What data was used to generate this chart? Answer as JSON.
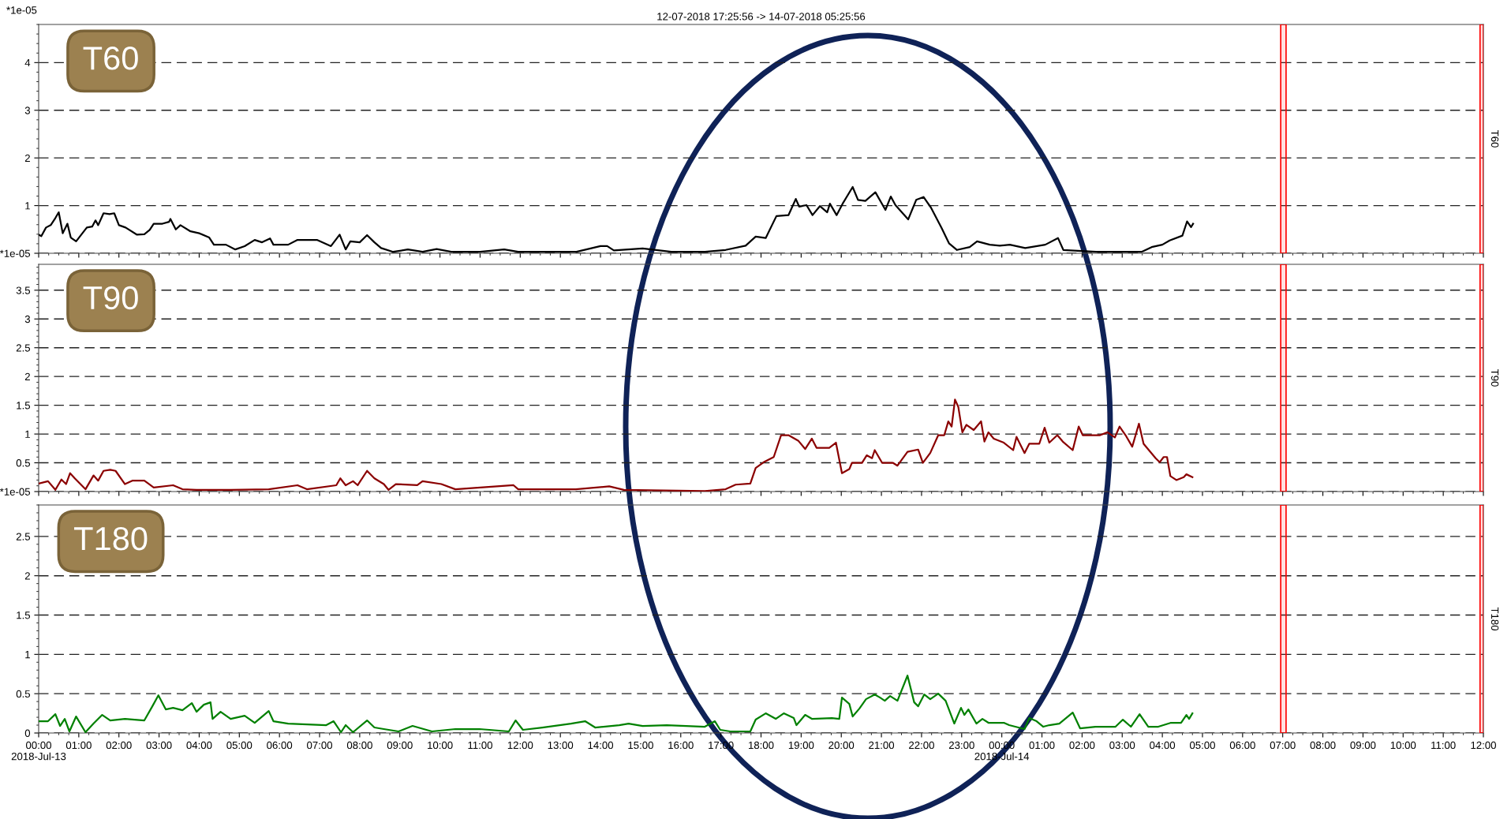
{
  "chart_data": [
    {
      "type": "line",
      "title": "12-07-2018 17:25:56 -> 14-07-2018 05:25:56",
      "ylabel": "*1e-05",
      "y2label": "T60",
      "annotations": [
        "T60"
      ],
      "grid": "y",
      "tick_labels": "y",
      "xlim": [
        "2018-07-13T00:00",
        "2018-07-14T12:00"
      ],
      "xticks": [
        {
          "value": "2018-07-13T00:00",
          "label": null
        },
        {
          "value": "2018-07-13T01:00",
          "label": null
        },
        {
          "value": "2018-07-13T02:00",
          "label": null
        },
        {
          "value": "2018-07-13T03:00",
          "label": null
        },
        {
          "value": "2018-07-13T04:00",
          "label": null
        },
        {
          "value": "2018-07-13T05:00",
          "label": null
        },
        {
          "value": "2018-07-13T06:00",
          "label": null
        },
        {
          "value": "2018-07-13T07:00",
          "label": null
        },
        {
          "value": "2018-07-13T08:00",
          "label": null
        },
        {
          "value": "2018-07-13T09:00",
          "label": null
        },
        {
          "value": "2018-07-13T10:00",
          "label": null
        },
        {
          "value": "2018-07-13T11:00",
          "label": null
        },
        {
          "value": "2018-07-13T12:00",
          "label": null
        },
        {
          "value": "2018-07-13T13:00",
          "label": null
        },
        {
          "value": "2018-07-13T14:00",
          "label": null
        },
        {
          "value": "2018-07-13T15:00",
          "label": null
        },
        {
          "value": "2018-07-13T16:00",
          "label": null
        },
        {
          "value": "2018-07-13T17:00",
          "label": null
        },
        {
          "value": "2018-07-13T18:00",
          "label": null
        },
        {
          "value": "2018-07-13T19:00",
          "label": null
        },
        {
          "value": "2018-07-13T20:00",
          "label": null
        },
        {
          "value": "2018-07-13T21:00",
          "label": null
        },
        {
          "value": "2018-07-13T22:00",
          "label": null
        },
        {
          "value": "2018-07-13T23:00",
          "label": null
        },
        {
          "value": "2018-07-14T00:00",
          "label": null
        },
        {
          "value": "2018-07-14T01:00",
          "label": null
        },
        {
          "value": "2018-07-14T02:00",
          "label": null
        },
        {
          "value": "2018-07-14T03:00",
          "label": null
        },
        {
          "value": "2018-07-14T04:00",
          "label": null
        },
        {
          "value": "2018-07-14T05:00",
          "label": null
        },
        {
          "value": "2018-07-14T06:00",
          "label": null
        },
        {
          "value": "2018-07-14T07:00",
          "label": null
        },
        {
          "value": "2018-07-14T08:00",
          "label": null
        },
        {
          "value": "2018-07-14T09:00",
          "label": null
        },
        {
          "value": "2018-07-14T10:00",
          "label": null
        },
        {
          "value": "2018-07-14T11:00",
          "label": null
        },
        {
          "value": "2018-07-14T12:00",
          "label": null
        }
      ],
      "ylim": [
        0,
        4.8
      ],
      "yticks": [
        {
          "value": 0,
          "label": "*1e-05"
        },
        1,
        2,
        3,
        4
      ],
      "bands": [
        {
          "axis": "x",
          "from": "2018-07-14T06:57",
          "to": "2018-07-14T07:05",
          "color": "#ff0000"
        },
        {
          "axis": "x",
          "from": "2018-07-14T11:55",
          "to": "2018-07-14T12:00",
          "color": "#ff0000"
        }
      ],
      "series": [
        {
          "color": "#000000",
          "x": [
            "2018-07-13T00:00",
            "2018-07-13T00:04",
            "2018-07-13T00:11",
            "2018-07-13T00:18",
            "2018-07-13T00:25",
            "2018-07-13T00:30",
            "2018-07-13T00:36",
            "2018-07-13T00:43",
            "2018-07-13T00:48",
            "2018-07-13T00:56",
            "2018-07-13T01:12",
            "2018-07-13T01:20",
            "2018-07-13T01:25",
            "2018-07-13T01:29",
            "2018-07-13T01:37",
            "2018-07-13T01:46",
            "2018-07-13T01:53",
            "2018-07-13T02:00",
            "2018-07-13T02:10",
            "2018-07-13T02:27",
            "2018-07-13T02:38",
            "2018-07-13T02:46",
            "2018-07-13T02:52",
            "2018-07-13T02:59",
            "2018-07-13T03:05",
            "2018-07-13T03:15",
            "2018-07-13T03:17",
            "2018-07-13T03:25",
            "2018-07-13T03:32",
            "2018-07-13T03:47",
            "2018-07-13T04:00",
            "2018-07-13T04:15",
            "2018-07-13T04:22",
            "2018-07-13T04:40",
            "2018-07-13T04:54",
            "2018-07-13T05:08",
            "2018-07-13T05:23",
            "2018-07-13T05:34",
            "2018-07-13T05:46",
            "2018-07-13T05:51",
            "2018-07-13T06:13",
            "2018-07-13T06:27",
            "2018-07-13T06:56",
            "2018-07-13T07:17",
            "2018-07-13T07:30",
            "2018-07-13T07:39",
            "2018-07-13T07:46",
            "2018-07-13T08:00",
            "2018-07-13T08:11",
            "2018-07-13T08:22",
            "2018-07-13T08:32",
            "2018-07-13T08:50",
            "2018-07-13T09:12",
            "2018-07-13T09:34",
            "2018-07-13T09:55",
            "2018-07-13T10:17",
            "2018-07-13T11:00",
            "2018-07-13T11:36",
            "2018-07-13T11:57",
            "2018-07-13T12:48",
            "2018-07-13T13:24",
            "2018-07-13T14:00",
            "2018-07-13T14:10",
            "2018-07-13T14:20",
            "2018-07-13T15:03",
            "2018-07-13T15:46",
            "2018-07-13T16:36",
            "2018-07-13T17:07",
            "2018-07-13T17:37",
            "2018-07-13T17:52",
            "2018-07-13T18:07",
            "2018-07-13T18:23",
            "2018-07-13T18:41",
            "2018-07-13T18:52",
            "2018-07-13T18:57",
            "2018-07-13T19:08",
            "2018-07-13T19:17",
            "2018-07-13T19:28",
            "2018-07-13T19:39",
            "2018-07-13T19:43",
            "2018-07-13T19:53",
            "2018-07-13T20:02",
            "2018-07-13T20:17",
            "2018-07-13T20:25",
            "2018-07-13T20:36",
            "2018-07-13T20:51",
            "2018-07-13T21:06",
            "2018-07-13T21:14",
            "2018-07-13T21:21",
            "2018-07-13T21:40",
            "2018-07-13T21:52",
            "2018-07-13T22:03",
            "2018-07-13T22:14",
            "2018-07-13T22:30",
            "2018-07-13T22:41",
            "2018-07-13T22:53",
            "2018-07-13T23:12",
            "2018-07-13T23:23",
            "2018-07-13T23:42",
            "2018-07-13T23:57",
            "2018-07-14T00:12",
            "2018-07-14T00:35",
            "2018-07-14T01:05",
            "2018-07-14T01:24",
            "2018-07-14T01:32",
            "2018-07-14T02:21",
            "2018-07-14T03:29",
            "2018-07-14T03:44",
            "2018-07-14T04:00",
            "2018-07-14T04:11",
            "2018-07-14T04:30",
            "2018-07-14T04:37",
            "2018-07-14T04:43",
            "2018-07-14T04:46"
          ],
          "values": [
            0.39,
            0.36,
            0.54,
            0.59,
            0.74,
            0.86,
            0.42,
            0.62,
            0.33,
            0.25,
            0.54,
            0.56,
            0.69,
            0.59,
            0.84,
            0.82,
            0.84,
            0.59,
            0.54,
            0.39,
            0.4,
            0.49,
            0.62,
            0.62,
            0.62,
            0.66,
            0.72,
            0.5,
            0.59,
            0.46,
            0.42,
            0.33,
            0.18,
            0.18,
            0.08,
            0.15,
            0.28,
            0.23,
            0.31,
            0.18,
            0.18,
            0.28,
            0.28,
            0.15,
            0.39,
            0.08,
            0.25,
            0.23,
            0.38,
            0.23,
            0.11,
            0.03,
            0.08,
            0.03,
            0.09,
            0.03,
            0.03,
            0.08,
            0.03,
            0.03,
            0.03,
            0.15,
            0.15,
            0.06,
            0.1,
            0.03,
            0.03,
            0.07,
            0.16,
            0.35,
            0.32,
            0.78,
            0.8,
            1.14,
            0.98,
            1.01,
            0.8,
            0.99,
            0.86,
            1.04,
            0.8,
            1.04,
            1.39,
            1.12,
            1.1,
            1.28,
            0.91,
            1.19,
            1.01,
            0.71,
            1.12,
            1.18,
            0.96,
            0.53,
            0.21,
            0.07,
            0.13,
            0.25,
            0.18,
            0.16,
            0.18,
            0.11,
            0.18,
            0.32,
            0.07,
            0.03,
            0.03,
            0.13,
            0.18,
            0.27,
            0.37,
            0.67,
            0.55,
            0.62
          ]
        }
      ]
    },
    {
      "type": "line",
      "y2label": "T90",
      "annotations": [
        "T90"
      ],
      "grid": "y",
      "tick_labels": "y",
      "xlim": [
        "2018-07-13T00:00",
        "2018-07-14T12:00"
      ],
      "xticks": [
        {
          "value": "2018-07-13T00:00",
          "label": null
        },
        {
          "value": "2018-07-13T01:00",
          "label": null
        },
        {
          "value": "2018-07-13T02:00",
          "label": null
        },
        {
          "value": "2018-07-13T03:00",
          "label": null
        },
        {
          "value": "2018-07-13T04:00",
          "label": null
        },
        {
          "value": "2018-07-13T05:00",
          "label": null
        },
        {
          "value": "2018-07-13T06:00",
          "label": null
        },
        {
          "value": "2018-07-13T07:00",
          "label": null
        },
        {
          "value": "2018-07-13T08:00",
          "label": null
        },
        {
          "value": "2018-07-13T09:00",
          "label": null
        },
        {
          "value": "2018-07-13T10:00",
          "label": null
        },
        {
          "value": "2018-07-13T11:00",
          "label": null
        },
        {
          "value": "2018-07-13T12:00",
          "label": null
        },
        {
          "value": "2018-07-13T13:00",
          "label": null
        },
        {
          "value": "2018-07-13T14:00",
          "label": null
        },
        {
          "value": "2018-07-13T15:00",
          "label": null
        },
        {
          "value": "2018-07-13T16:00",
          "label": null
        },
        {
          "value": "2018-07-13T17:00",
          "label": null
        },
        {
          "value": "2018-07-13T18:00",
          "label": null
        },
        {
          "value": "2018-07-13T19:00",
          "label": null
        },
        {
          "value": "2018-07-13T20:00",
          "label": null
        },
        {
          "value": "2018-07-13T21:00",
          "label": null
        },
        {
          "value": "2018-07-13T22:00",
          "label": null
        },
        {
          "value": "2018-07-13T23:00",
          "label": null
        },
        {
          "value": "2018-07-14T00:00",
          "label": null
        },
        {
          "value": "2018-07-14T01:00",
          "label": null
        },
        {
          "value": "2018-07-14T02:00",
          "label": null
        },
        {
          "value": "2018-07-14T03:00",
          "label": null
        },
        {
          "value": "2018-07-14T04:00",
          "label": null
        },
        {
          "value": "2018-07-14T05:00",
          "label": null
        },
        {
          "value": "2018-07-14T06:00",
          "label": null
        },
        {
          "value": "2018-07-14T07:00",
          "label": null
        },
        {
          "value": "2018-07-14T08:00",
          "label": null
        },
        {
          "value": "2018-07-14T09:00",
          "label": null
        },
        {
          "value": "2018-07-14T10:00",
          "label": null
        },
        {
          "value": "2018-07-14T11:00",
          "label": null
        },
        {
          "value": "2018-07-14T12:00",
          "label": null
        }
      ],
      "ylim": [
        0,
        3.95
      ],
      "yticks": [
        {
          "value": 0,
          "label": "*1e-05"
        },
        0.5,
        1,
        1.5,
        2,
        2.5,
        3,
        3.5
      ],
      "bands": [
        {
          "axis": "x",
          "from": "2018-07-14T06:57",
          "to": "2018-07-14T07:05",
          "color": "#ff0000"
        },
        {
          "axis": "x",
          "from": "2018-07-14T11:55",
          "to": "2018-07-14T12:00",
          "color": "#ff0000"
        }
      ],
      "series": [
        {
          "color": "#8b0000",
          "x": [
            "2018-07-13T00:00",
            "2018-07-13T00:14",
            "2018-07-13T00:25",
            "2018-07-13T00:34",
            "2018-07-13T00:41",
            "2018-07-13T00:47",
            "2018-07-13T00:54",
            "2018-07-13T01:10",
            "2018-07-13T01:22",
            "2018-07-13T01:29",
            "2018-07-13T01:37",
            "2018-07-13T01:47",
            "2018-07-13T01:55",
            "2018-07-13T02:09",
            "2018-07-13T02:20",
            "2018-07-13T02:38",
            "2018-07-13T02:52",
            "2018-07-13T03:21",
            "2018-07-13T03:35",
            "2018-07-13T03:56",
            "2018-07-13T04:47",
            "2018-07-13T05:44",
            "2018-07-13T06:27",
            "2018-07-13T06:41",
            "2018-07-13T07:25",
            "2018-07-13T07:31",
            "2018-07-13T07:39",
            "2018-07-13T07:50",
            "2018-07-13T07:57",
            "2018-07-13T08:11",
            "2018-07-13T08:22",
            "2018-07-13T08:36",
            "2018-07-13T08:43",
            "2018-07-13T08:54",
            "2018-07-13T09:26",
            "2018-07-13T09:34",
            "2018-07-13T10:02",
            "2018-07-13T10:23",
            "2018-07-13T11:50",
            "2018-07-13T11:57",
            "2018-07-13T13:23",
            "2018-07-13T14:13",
            "2018-07-13T14:35",
            "2018-07-13T16:36",
            "2018-07-13T17:07",
            "2018-07-13T17:22",
            "2018-07-13T17:44",
            "2018-07-13T17:52",
            "2018-07-13T18:04",
            "2018-07-13T18:19",
            "2018-07-13T18:30",
            "2018-07-13T18:41",
            "2018-07-13T18:56",
            "2018-07-13T19:06",
            "2018-07-13T19:16",
            "2018-07-13T19:23",
            "2018-07-13T19:42",
            "2018-07-13T19:52",
            "2018-07-13T20:01",
            "2018-07-13T20:12",
            "2018-07-13T20:16",
            "2018-07-13T20:31",
            "2018-07-13T20:38",
            "2018-07-13T20:46",
            "2018-07-13T20:50",
            "2018-07-13T21:01",
            "2018-07-13T21:17",
            "2018-07-13T21:24",
            "2018-07-13T21:39",
            "2018-07-13T21:55",
            "2018-07-13T22:02",
            "2018-07-13T22:13",
            "2018-07-13T22:25",
            "2018-07-13T22:34",
            "2018-07-13T22:40",
            "2018-07-13T22:45",
            "2018-07-13T22:50",
            "2018-07-13T22:55",
            "2018-07-13T23:01",
            "2018-07-13T23:07",
            "2018-07-13T23:18",
            "2018-07-13T23:29",
            "2018-07-13T23:34",
            "2018-07-13T23:40",
            "2018-07-13T23:48",
            "2018-07-14T00:03",
            "2018-07-14T00:17",
            "2018-07-14T00:22",
            "2018-07-14T00:34",
            "2018-07-14T00:41",
            "2018-07-14T00:56",
            "2018-07-14T01:04",
            "2018-07-14T01:11",
            "2018-07-14T01:23",
            "2018-07-14T01:31",
            "2018-07-14T01:46",
            "2018-07-14T01:55",
            "2018-07-14T02:01",
            "2018-07-14T02:27",
            "2018-07-14T02:38",
            "2018-07-14T02:49",
            "2018-07-14T02:56",
            "2018-07-14T03:05",
            "2018-07-14T03:15",
            "2018-07-14T03:25",
            "2018-07-14T03:32",
            "2018-07-14T03:50",
            "2018-07-14T03:56",
            "2018-07-14T04:02",
            "2018-07-14T04:07",
            "2018-07-14T04:12",
            "2018-07-14T04:21",
            "2018-07-14T04:32",
            "2018-07-14T04:36",
            "2018-07-14T04:45"
          ],
          "values": [
            0.14,
            0.18,
            0.03,
            0.21,
            0.13,
            0.32,
            0.23,
            0.04,
            0.28,
            0.19,
            0.36,
            0.38,
            0.36,
            0.13,
            0.19,
            0.19,
            0.07,
            0.11,
            0.04,
            0.03,
            0.03,
            0.04,
            0.11,
            0.04,
            0.11,
            0.23,
            0.11,
            0.18,
            0.11,
            0.36,
            0.23,
            0.13,
            0.03,
            0.13,
            0.11,
            0.18,
            0.13,
            0.04,
            0.11,
            0.04,
            0.04,
            0.09,
            0.03,
            0.01,
            0.04,
            0.12,
            0.14,
            0.41,
            0.51,
            0.6,
            0.98,
            0.98,
            0.88,
            0.74,
            0.92,
            0.76,
            0.76,
            0.85,
            0.32,
            0.39,
            0.5,
            0.5,
            0.63,
            0.58,
            0.72,
            0.5,
            0.5,
            0.45,
            0.69,
            0.73,
            0.5,
            0.67,
            0.98,
            0.98,
            1.22,
            1.13,
            1.6,
            1.47,
            1.03,
            1.16,
            1.07,
            1.22,
            0.87,
            1.03,
            0.92,
            0.85,
            0.72,
            0.95,
            0.67,
            0.83,
            0.83,
            1.11,
            0.85,
            0.98,
            0.87,
            0.72,
            1.13,
            0.98,
            0.98,
            1.03,
            0.94,
            1.13,
            0.98,
            0.78,
            1.18,
            0.83,
            0.58,
            0.51,
            0.6,
            0.6,
            0.27,
            0.2,
            0.25,
            0.3,
            0.25
          ]
        }
      ]
    },
    {
      "type": "line",
      "y2label": "T180",
      "annotations": [
        "T180"
      ],
      "grid": "y",
      "xlim": [
        "2018-07-13T00:00",
        "2018-07-14T12:00"
      ],
      "xticks": [
        {
          "value": "2018-07-13T00:00",
          "label": "00:00\n2018-Jul-13"
        },
        {
          "value": "2018-07-13T01:00",
          "label": "01:00"
        },
        {
          "value": "2018-07-13T02:00",
          "label": "02:00"
        },
        {
          "value": "2018-07-13T03:00",
          "label": "03:00"
        },
        {
          "value": "2018-07-13T04:00",
          "label": "04:00"
        },
        {
          "value": "2018-07-13T05:00",
          "label": "05:00"
        },
        {
          "value": "2018-07-13T06:00",
          "label": "06:00"
        },
        {
          "value": "2018-07-13T07:00",
          "label": "07:00"
        },
        {
          "value": "2018-07-13T08:00",
          "label": "08:00"
        },
        {
          "value": "2018-07-13T09:00",
          "label": "09:00"
        },
        {
          "value": "2018-07-13T10:00",
          "label": "10:00"
        },
        {
          "value": "2018-07-13T11:00",
          "label": "11:00"
        },
        {
          "value": "2018-07-13T12:00",
          "label": "12:00"
        },
        {
          "value": "2018-07-13T13:00",
          "label": "13:00"
        },
        {
          "value": "2018-07-13T14:00",
          "label": "14:00"
        },
        {
          "value": "2018-07-13T15:00",
          "label": "15:00"
        },
        {
          "value": "2018-07-13T16:00",
          "label": "16:00"
        },
        {
          "value": "2018-07-13T17:00",
          "label": "17:00"
        },
        {
          "value": "2018-07-13T18:00",
          "label": "18:00"
        },
        {
          "value": "2018-07-13T19:00",
          "label": "19:00"
        },
        {
          "value": "2018-07-13T20:00",
          "label": "20:00"
        },
        {
          "value": "2018-07-13T21:00",
          "label": "21:00"
        },
        {
          "value": "2018-07-13T22:00",
          "label": "22:00"
        },
        {
          "value": "2018-07-13T23:00",
          "label": "23:00"
        },
        {
          "value": "2018-07-14T00:00",
          "label": "00:00\n2018-Jul-14"
        },
        {
          "value": "2018-07-14T01:00",
          "label": "01:00"
        },
        {
          "value": "2018-07-14T02:00",
          "label": "02:00"
        },
        {
          "value": "2018-07-14T03:00",
          "label": "03:00"
        },
        {
          "value": "2018-07-14T04:00",
          "label": "04:00"
        },
        {
          "value": "2018-07-14T05:00",
          "label": "05:00"
        },
        {
          "value": "2018-07-14T06:00",
          "label": "06:00"
        },
        {
          "value": "2018-07-14T07:00",
          "label": "07:00"
        },
        {
          "value": "2018-07-14T08:00",
          "label": "08:00"
        },
        {
          "value": "2018-07-14T09:00",
          "label": "09:00"
        },
        {
          "value": "2018-07-14T10:00",
          "label": "10:00"
        },
        {
          "value": "2018-07-14T11:00",
          "label": "11:00"
        },
        {
          "value": "2018-07-14T12:00",
          "label": "12:00"
        }
      ],
      "ylim": [
        0,
        2.9
      ],
      "yticks": [
        0,
        0.5,
        1,
        1.5,
        2,
        2.5
      ],
      "bands": [
        {
          "axis": "x",
          "from": "2018-07-14T06:57",
          "to": "2018-07-14T07:05",
          "color": "#ff0000"
        },
        {
          "axis": "x",
          "from": "2018-07-14T11:55",
          "to": "2018-07-14T12:00",
          "color": "#ff0000"
        }
      ],
      "series": [
        {
          "color": "#008000",
          "x": [
            "2018-07-13T00:00",
            "2018-07-13T00:14",
            "2018-07-13T00:25",
            "2018-07-13T00:32",
            "2018-07-13T00:39",
            "2018-07-13T00:46",
            "2018-07-13T00:56",
            "2018-07-13T01:10",
            "2018-07-13T01:22",
            "2018-07-13T01:35",
            "2018-07-13T01:47",
            "2018-07-13T02:09",
            "2018-07-13T02:38",
            "2018-07-13T02:50",
            "2018-07-13T02:59",
            "2018-07-13T03:10",
            "2018-07-13T03:21",
            "2018-07-13T03:35",
            "2018-07-13T03:49",
            "2018-07-13T03:56",
            "2018-07-13T04:07",
            "2018-07-13T04:17",
            "2018-07-13T04:20",
            "2018-07-13T04:32",
            "2018-07-13T04:47",
            "2018-07-13T05:08",
            "2018-07-13T05:23",
            "2018-07-13T05:44",
            "2018-07-13T05:51",
            "2018-07-13T06:13",
            "2018-07-13T07:10",
            "2018-07-13T07:21",
            "2018-07-13T07:32",
            "2018-07-13T07:39",
            "2018-07-13T07:50",
            "2018-07-13T08:11",
            "2018-07-13T08:22",
            "2018-07-13T08:36",
            "2018-07-13T08:58",
            "2018-07-13T09:19",
            "2018-07-13T09:48",
            "2018-07-13T10:23",
            "2018-07-13T10:59",
            "2018-07-13T11:43",
            "2018-07-13T11:53",
            "2018-07-13T12:04",
            "2018-07-13T12:33",
            "2018-07-13T13:16",
            "2018-07-13T13:37",
            "2018-07-13T13:52",
            "2018-07-13T14:28",
            "2018-07-13T14:42",
            "2018-07-13T15:03",
            "2018-07-13T15:39",
            "2018-07-13T16:08",
            "2018-07-13T16:36",
            "2018-07-13T16:51",
            "2018-07-13T16:59",
            "2018-07-13T17:14",
            "2018-07-13T17:44",
            "2018-07-13T17:52",
            "2018-07-13T18:07",
            "2018-07-13T18:22",
            "2018-07-13T18:34",
            "2018-07-13T18:49",
            "2018-07-13T18:53",
            "2018-07-13T19:06",
            "2018-07-13T19:16",
            "2018-07-13T19:46",
            "2018-07-13T19:57",
            "2018-07-13T20:01",
            "2018-07-13T20:12",
            "2018-07-13T20:17",
            "2018-07-13T20:27",
            "2018-07-13T20:37",
            "2018-07-13T20:50",
            "2018-07-13T20:58",
            "2018-07-13T21:05",
            "2018-07-13T21:13",
            "2018-07-13T21:24",
            "2018-07-13T21:39",
            "2018-07-13T21:49",
            "2018-07-13T21:55",
            "2018-07-13T22:04",
            "2018-07-13T22:13",
            "2018-07-13T22:25",
            "2018-07-13T22:36",
            "2018-07-13T22:49",
            "2018-07-13T22:59",
            "2018-07-13T23:04",
            "2018-07-13T23:10",
            "2018-07-13T23:22",
            "2018-07-13T23:31",
            "2018-07-13T23:40",
            "2018-07-14T00:03",
            "2018-07-14T00:11",
            "2018-07-14T00:34",
            "2018-07-14T00:41",
            "2018-07-14T00:52",
            "2018-07-14T01:02",
            "2018-07-14T01:11",
            "2018-07-14T01:26",
            "2018-07-14T01:46",
            "2018-07-14T01:57",
            "2018-07-14T02:20",
            "2018-07-14T02:50",
            "2018-07-14T03:01",
            "2018-07-14T03:13",
            "2018-07-14T03:26",
            "2018-07-14T03:39",
            "2018-07-14T03:54",
            "2018-07-14T04:13",
            "2018-07-14T04:28",
            "2018-07-14T04:36",
            "2018-07-14T04:40",
            "2018-07-14T04:45"
          ],
          "values": [
            0.15,
            0.15,
            0.24,
            0.09,
            0.18,
            0.02,
            0.21,
            0.01,
            0.12,
            0.23,
            0.16,
            0.18,
            0.16,
            0.34,
            0.48,
            0.3,
            0.32,
            0.29,
            0.38,
            0.27,
            0.36,
            0.39,
            0.18,
            0.27,
            0.18,
            0.22,
            0.13,
            0.28,
            0.15,
            0.12,
            0.1,
            0.15,
            0.01,
            0.1,
            0.01,
            0.16,
            0.07,
            0.05,
            0.02,
            0.09,
            0.02,
            0.05,
            0.05,
            0.02,
            0.16,
            0.04,
            0.07,
            0.12,
            0.15,
            0.07,
            0.1,
            0.12,
            0.09,
            0.1,
            0.09,
            0.08,
            0.15,
            0.04,
            0.02,
            0.02,
            0.17,
            0.25,
            0.18,
            0.25,
            0.19,
            0.1,
            0.23,
            0.18,
            0.19,
            0.18,
            0.45,
            0.37,
            0.21,
            0.31,
            0.43,
            0.49,
            0.45,
            0.41,
            0.47,
            0.41,
            0.73,
            0.39,
            0.34,
            0.49,
            0.43,
            0.5,
            0.41,
            0.12,
            0.32,
            0.23,
            0.3,
            0.12,
            0.18,
            0.13,
            0.13,
            0.1,
            0.05,
            0.19,
            0.15,
            0.08,
            0.1,
            0.12,
            0.26,
            0.06,
            0.08,
            0.08,
            0.17,
            0.08,
            0.24,
            0.08,
            0.08,
            0.13,
            0.13,
            0.23,
            0.18,
            0.25
          ]
        }
      ]
    }
  ]
}
